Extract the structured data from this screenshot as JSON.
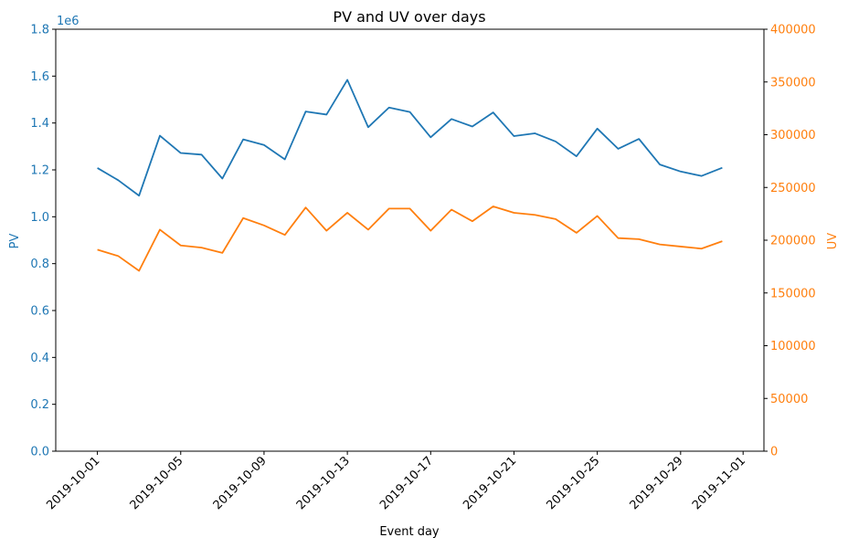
{
  "chart_data": {
    "type": "line",
    "title": "PV and UV over days",
    "xlabel": "Event day",
    "ylabel_left": "PV",
    "ylabel_right": "UV",
    "left_axis_multiplier": "1e6",
    "colors": {
      "pv": "#1f77b4",
      "uv": "#ff7f0e"
    },
    "grid": false,
    "xlim": [
      "2019-09-29",
      "2019-11-02"
    ],
    "ylim_left": [
      0,
      1800000
    ],
    "ylim_right": [
      0,
      400000
    ],
    "x_ticks": [
      "2019-10-01",
      "2019-10-05",
      "2019-10-09",
      "2019-10-13",
      "2019-10-17",
      "2019-10-21",
      "2019-10-25",
      "2019-10-29",
      "2019-11-01"
    ],
    "y_ticks_left": [
      "0.0",
      "0.2",
      "0.4",
      "0.6",
      "0.8",
      "1.0",
      "1.2",
      "1.4",
      "1.6",
      "1.8"
    ],
    "y_ticks_right": [
      "0",
      "50000",
      "100000",
      "150000",
      "200000",
      "250000",
      "300000",
      "350000",
      "400000"
    ],
    "x": [
      "2019-10-01",
      "2019-10-02",
      "2019-10-03",
      "2019-10-04",
      "2019-10-05",
      "2019-10-06",
      "2019-10-07",
      "2019-10-08",
      "2019-10-09",
      "2019-10-10",
      "2019-10-11",
      "2019-10-12",
      "2019-10-13",
      "2019-10-14",
      "2019-10-15",
      "2019-10-16",
      "2019-10-17",
      "2019-10-18",
      "2019-10-19",
      "2019-10-20",
      "2019-10-21",
      "2019-10-22",
      "2019-10-23",
      "2019-10-24",
      "2019-10-25",
      "2019-10-26",
      "2019-10-27",
      "2019-10-28",
      "2019-10-29",
      "2019-10-30",
      "2019-10-31"
    ],
    "series": [
      {
        "name": "PV",
        "axis": "left",
        "values": [
          1208000,
          1156000,
          1090000,
          1346000,
          1272000,
          1265000,
          1163000,
          1330000,
          1306000,
          1245000,
          1449000,
          1436000,
          1584000,
          1382000,
          1466000,
          1447000,
          1339000,
          1417000,
          1385000,
          1445000,
          1344000,
          1356000,
          1321000,
          1258000,
          1376000,
          1290000,
          1332000,
          1223000,
          1193000,
          1174000,
          1209000
        ]
      },
      {
        "name": "UV",
        "axis": "right",
        "values": [
          191000,
          185000,
          171000,
          210000,
          195000,
          193000,
          188000,
          221000,
          214000,
          205000,
          231000,
          209000,
          226000,
          210000,
          230000,
          230000,
          209000,
          229000,
          218000,
          232000,
          226000,
          224000,
          220000,
          207000,
          223000,
          202000,
          201000,
          196000,
          194000,
          192000,
          199000
        ]
      }
    ]
  }
}
